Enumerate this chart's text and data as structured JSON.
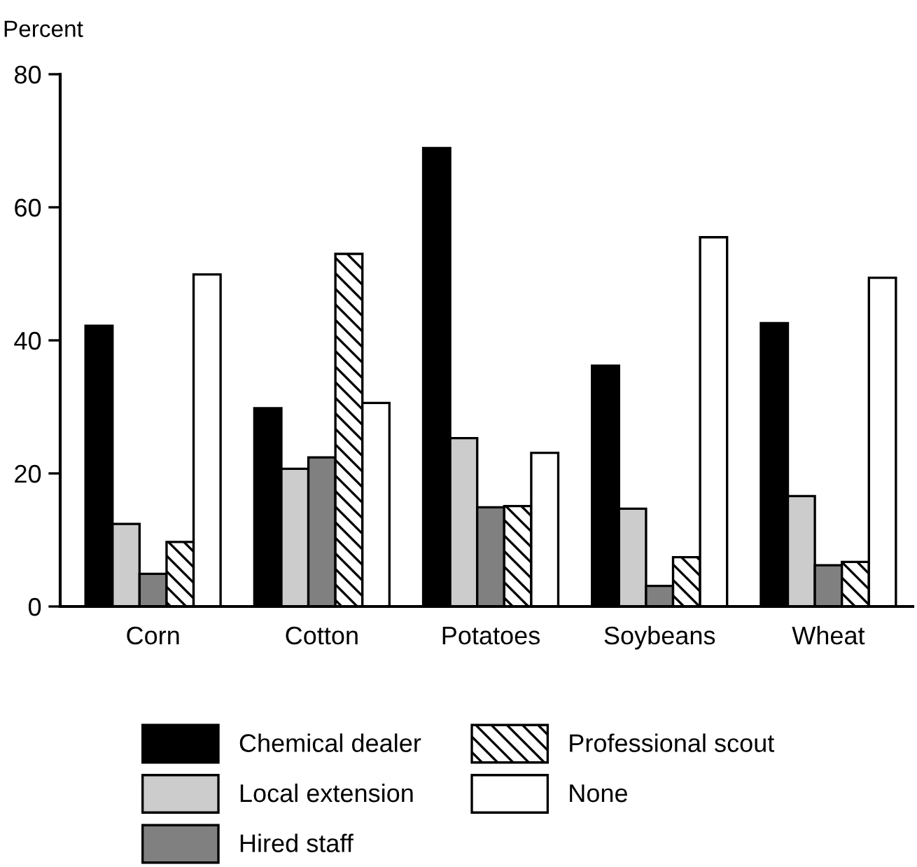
{
  "chart_data": {
    "type": "bar",
    "ylabel": "Percent",
    "categories": [
      "Corn",
      "Cotton",
      "Potatoes",
      "Soybeans",
      "Wheat"
    ],
    "series": [
      {
        "name": "Chemical dealer",
        "color": "#000000",
        "values": [
          42.2,
          29.8,
          68.9,
          36.2,
          42.6
        ]
      },
      {
        "name": "Local extension",
        "color": "#cccccc",
        "values": [
          12.4,
          20.7,
          25.3,
          14.7,
          16.6
        ]
      },
      {
        "name": "Hired staff",
        "color": "#808080",
        "values": [
          4.9,
          22.4,
          14.9,
          3.1,
          6.2
        ]
      },
      {
        "name": "Professional scout",
        "color": "#000000",
        "values": [
          9.7,
          53.0,
          15.1,
          7.4,
          6.7
        ]
      },
      {
        "name": "None",
        "color": "#ffffff",
        "values": [
          49.9,
          30.6,
          23.1,
          55.5,
          49.4
        ]
      }
    ],
    "ylim": [
      0,
      80
    ],
    "yticks": [
      0,
      20,
      40,
      60,
      80
    ],
    "grid": false,
    "legend": "bottom"
  }
}
